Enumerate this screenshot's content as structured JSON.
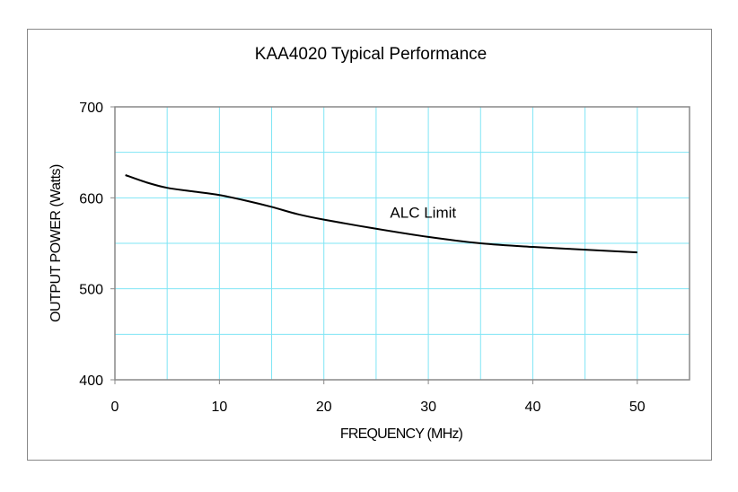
{
  "chart_data": {
    "type": "line",
    "title": "KAA4020 Typical Performance",
    "xlabel": "FREQUENCY (MHz)",
    "ylabel": "OUTPUT POWER (Watts)",
    "xlim": [
      0,
      55
    ],
    "ylim": [
      400,
      700
    ],
    "xticks": [
      0,
      10,
      20,
      30,
      40,
      50
    ],
    "yticks": [
      400,
      500,
      600,
      700
    ],
    "grid": true,
    "grid_color": "#7fe5f5",
    "line_color": "#000000",
    "annotation": {
      "text": "ALC Limit",
      "x": 29.5,
      "y": 578
    },
    "series": [
      {
        "x": [
          1,
          3,
          5,
          7.5,
          10,
          12.5,
          15,
          17.5,
          20,
          25,
          30,
          35,
          40,
          45,
          50
        ],
        "y": [
          625,
          617,
          611,
          607,
          603,
          597,
          590,
          582,
          576,
          566,
          557,
          550,
          546,
          543,
          540
        ]
      }
    ]
  }
}
